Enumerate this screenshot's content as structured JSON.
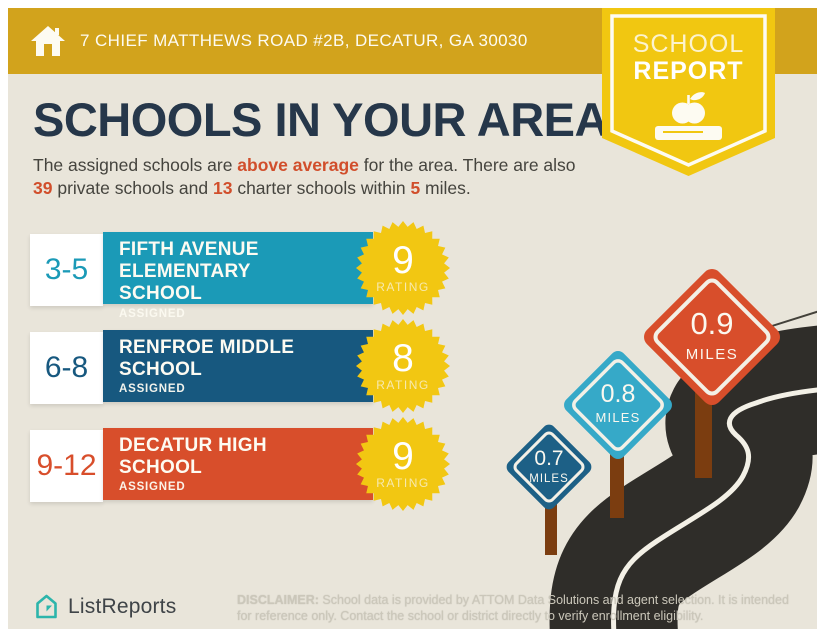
{
  "header": {
    "address": "7 CHIEF MATTHEWS ROAD #2B, DECATUR, GA 30030",
    "badge": {
      "line1": "SCHOOL",
      "line2": "REPORT"
    }
  },
  "main": {
    "title": "SCHOOLS IN YOUR AREA",
    "subtitle": {
      "segments": [
        {
          "text": "The assigned schools are ",
          "highlight": false
        },
        {
          "text": "above average",
          "highlight": true
        },
        {
          "text": " for the area. There are also ",
          "highlight": false
        },
        {
          "text": "39",
          "highlight": true
        },
        {
          "text": " private schools and ",
          "highlight": false
        },
        {
          "text": "13",
          "highlight": true
        },
        {
          "text": " charter schools within ",
          "highlight": false
        },
        {
          "text": "5",
          "highlight": true
        },
        {
          "text": " miles.",
          "highlight": false
        }
      ]
    }
  },
  "schools": [
    {
      "grades": "3-5",
      "name": "FIFTH AVENUE ELEMENTARY SCHOOL",
      "status": "ASSIGNED",
      "rating": "9",
      "rating_label": "RATING",
      "color": "#1B9AB7"
    },
    {
      "grades": "6-8",
      "name": "RENFROE MIDDLE SCHOOL",
      "status": "ASSIGNED",
      "rating": "8",
      "rating_label": "RATING",
      "color": "#17587F"
    },
    {
      "grades": "9-12",
      "name": "DECATUR HIGH SCHOOL",
      "status": "ASSIGNED",
      "rating": "9",
      "rating_label": "RATING",
      "color": "#D84E2B"
    }
  ],
  "signs": [
    {
      "value": "0.7",
      "unit": "MILES",
      "color": "#1D6086"
    },
    {
      "value": "0.8",
      "unit": "MILES",
      "color": "#36A9C8"
    },
    {
      "value": "0.9",
      "unit": "MILES",
      "color": "#D84E2B"
    }
  ],
  "footer": {
    "brand": "ListReports",
    "disclaimer_label": "DISCLAIMER:",
    "disclaimer_line1": " School data is provided by ATTOM Data Solutions and agent selection. It is intended",
    "disclaimer_line2": "for reference only. Contact the school or district directly to verify enrollment eligibility."
  },
  "colors": {
    "header_gold": "#D2A31C",
    "badge_gold": "#F1C711",
    "background_beige": "#E9E5DA",
    "title_navy": "#26374A",
    "highlight_orange": "#D14E2B",
    "teal": "#1B9AB7",
    "navy": "#17587F",
    "orange": "#D84E2B",
    "starburst_gold": "#F2C712",
    "road_dark": "#2F2D29",
    "post_brown": "#7B3D10",
    "brand_teal": "#2CB5AB"
  }
}
